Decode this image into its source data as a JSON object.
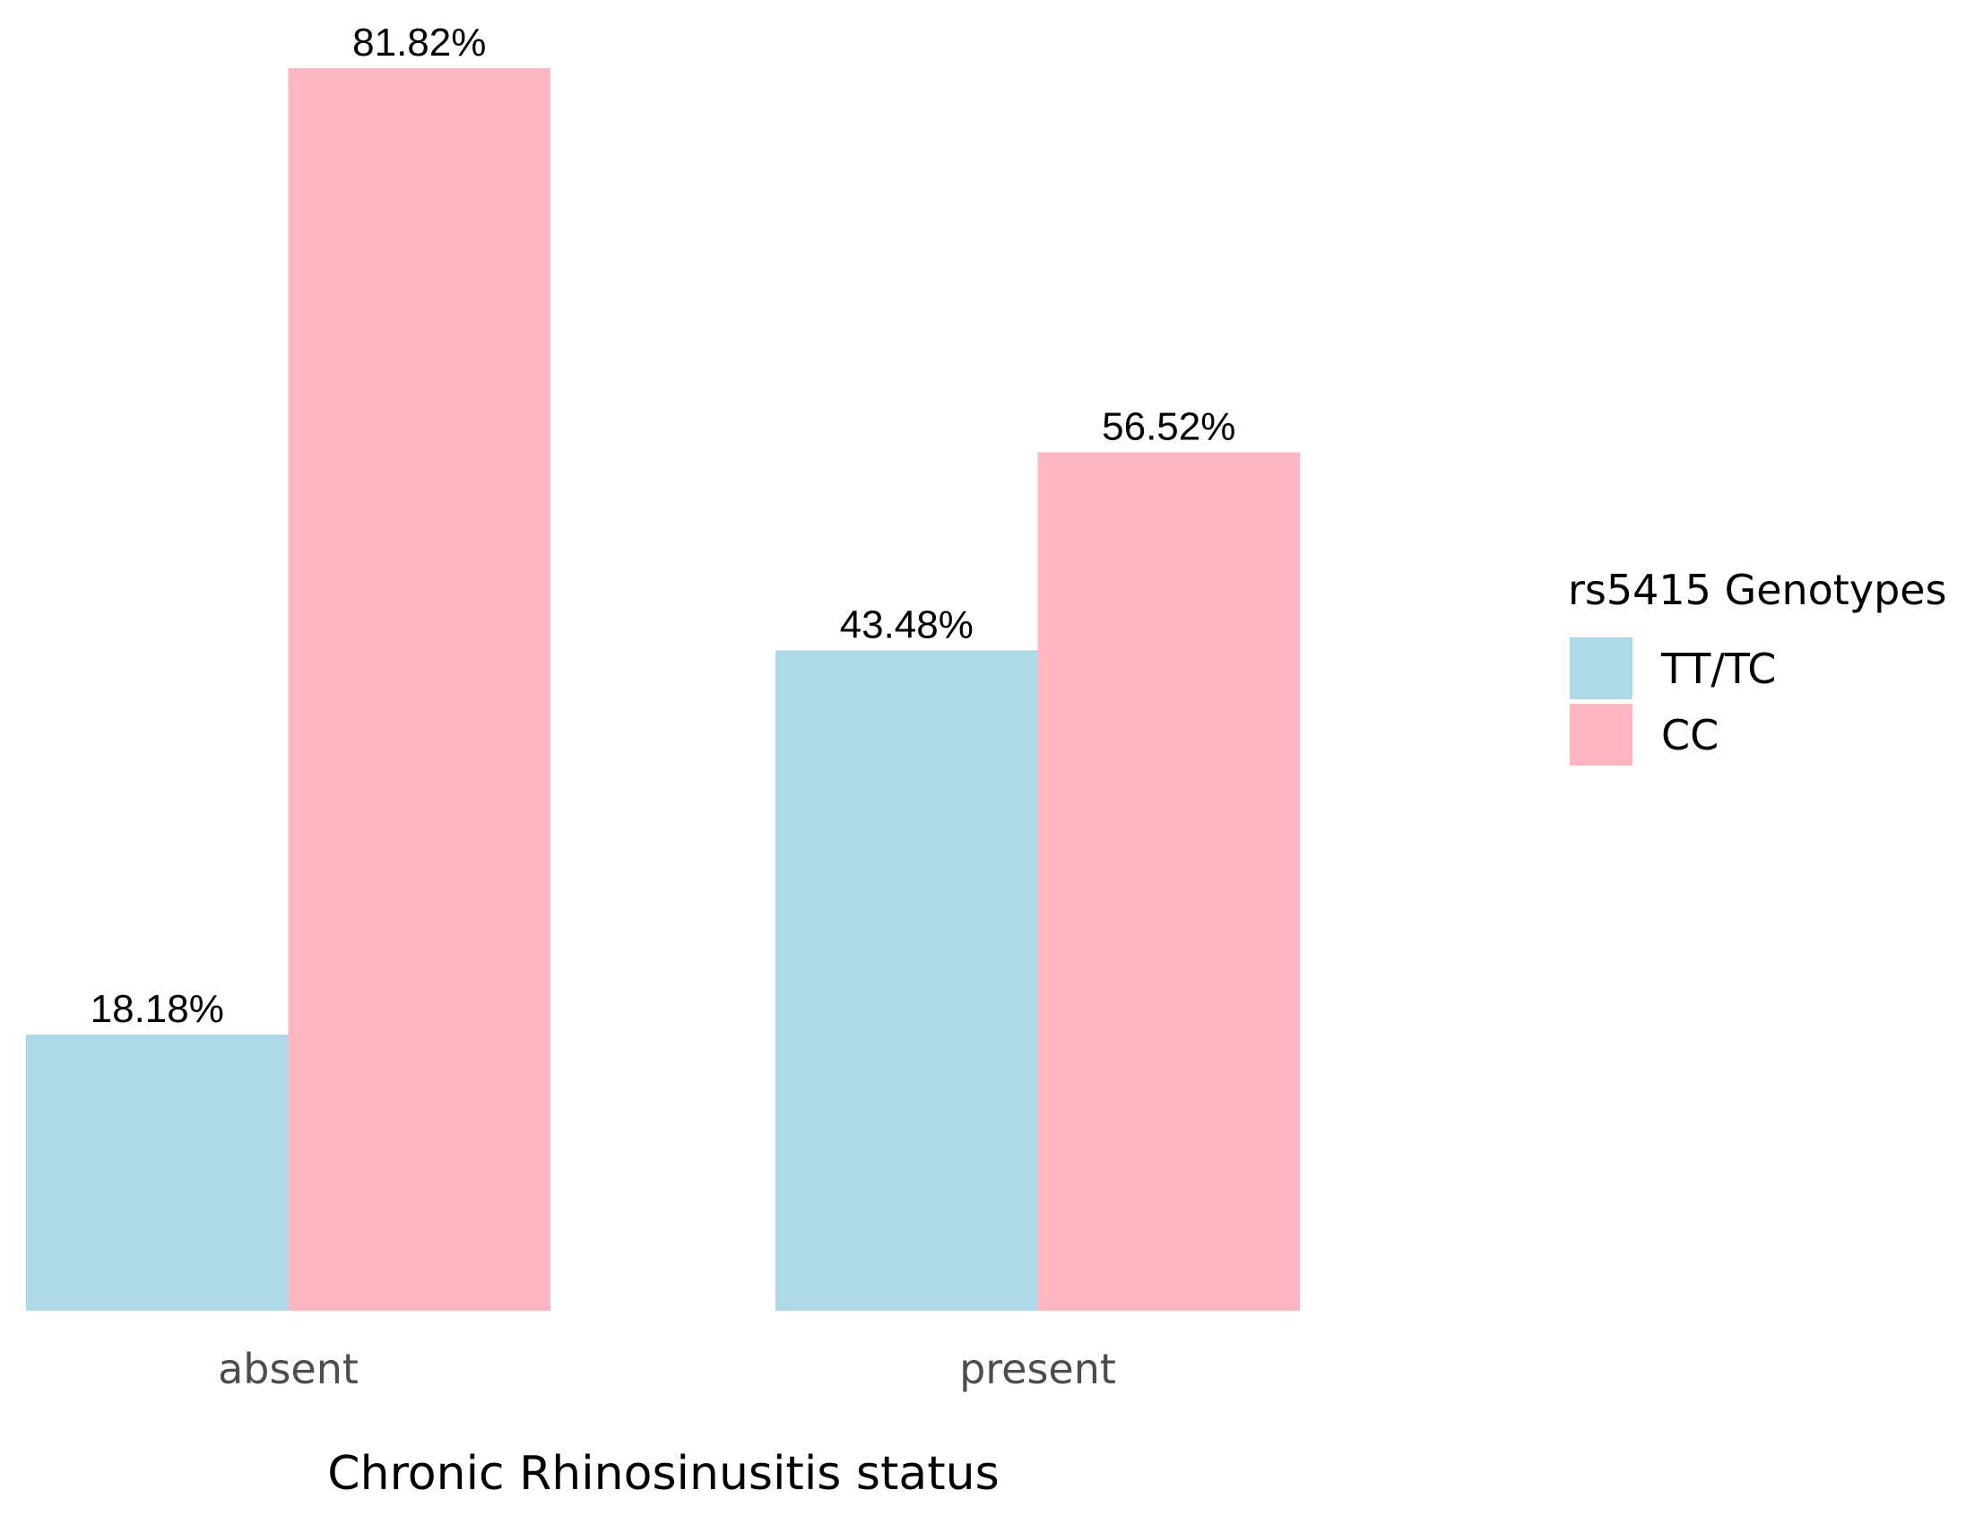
{
  "chart_data": {
    "type": "bar",
    "xlabel": "Chronic Rhinosinusitis status",
    "ylabel": "",
    "categories": [
      "absent",
      "present"
    ],
    "series": [
      {
        "name": "TT/TC",
        "color": "#ADD8E6",
        "values": [
          18.18,
          43.48
        ],
        "labels": [
          "18.18%",
          "43.48%"
        ]
      },
      {
        "name": "CC",
        "color": "#FFB6C1",
        "values": [
          81.82,
          56.52
        ],
        "labels": [
          "81.82%",
          "56.52%"
        ]
      }
    ],
    "ylim": [
      0,
      81.82
    ],
    "grid": false,
    "legend": {
      "title": "rs5415 Genotypes",
      "placement": "right"
    }
  }
}
